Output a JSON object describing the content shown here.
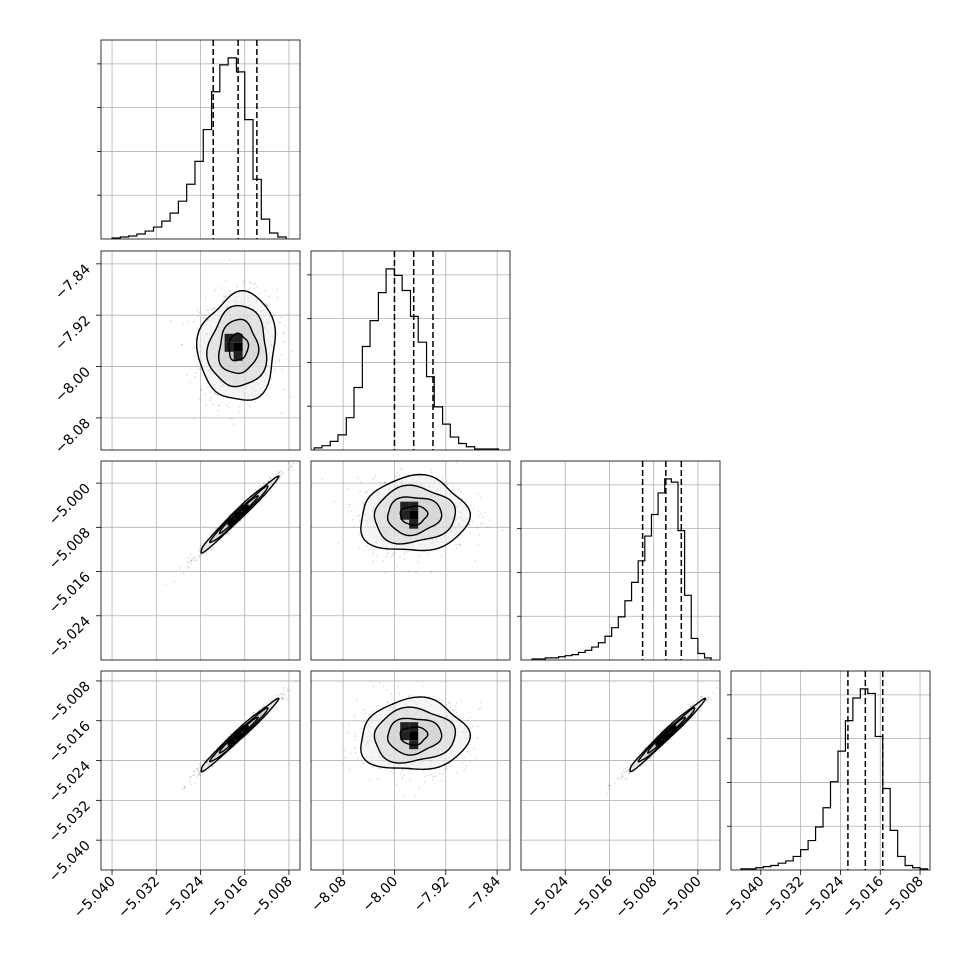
{
  "figure": {
    "kind": "corner plot"
  },
  "params": [
    {
      "range": [
        -5.042,
        -5.006
      ],
      "ticks": [
        -5.04,
        -5.032,
        -5.024,
        -5.016,
        -5.008
      ],
      "tick_labels": [
        "−5.040",
        "−5.032",
        "−5.024",
        "−5.016",
        "−5.008"
      ],
      "quantiles": [
        -5.0217,
        -5.0172,
        -5.0138
      ]
    },
    {
      "range": [
        -8.13,
        -7.82
      ],
      "ticks": [
        -8.08,
        -8.0,
        -7.92,
        -7.84
      ],
      "tick_labels": [
        "−8.08",
        "−8.00",
        "−7.92",
        "−7.84"
      ],
      "quantiles": [
        -8.0,
        -7.97,
        -7.94
      ]
    },
    {
      "range": [
        -5.032,
        -4.996
      ],
      "ticks": [
        -5.024,
        -5.016,
        -5.008,
        -5.0
      ],
      "tick_labels": [
        "−5.024",
        "−5.016",
        "−5.008",
        "−5.000"
      ],
      "quantiles": [
        -5.01,
        -5.0058,
        -5.003
      ]
    },
    {
      "range": [
        -5.046,
        -5.006
      ],
      "ticks": [
        -5.04,
        -5.032,
        -5.024,
        -5.016,
        -5.008
      ],
      "tick_labels": [
        "−5.040",
        "−5.032",
        "−5.024",
        "−5.016",
        "−5.008"
      ],
      "quantiles": [
        -5.0225,
        -5.019,
        -5.0155
      ]
    }
  ],
  "chart_data": {
    "type": "histogram",
    "grid": true,
    "histograms": [
      {
        "param": 0,
        "bin_edges": [
          -5.04,
          -5.0385,
          -5.037,
          -5.0355,
          -5.034,
          -5.0325,
          -5.031,
          -5.0295,
          -5.028,
          -5.0265,
          -5.025,
          -5.0235,
          -5.022,
          -5.0205,
          -5.019,
          -5.0175,
          -5.016,
          -5.0145,
          -5.013,
          -5.0115,
          -5.01,
          -5.0085
        ],
        "counts": [
          1,
          2,
          3,
          5,
          8,
          12,
          18,
          26,
          38,
          55,
          78,
          110,
          148,
          175,
          182,
          168,
          120,
          60,
          20,
          6,
          2
        ]
      },
      {
        "param": 1,
        "bin_edges": [
          -8.125,
          -8.113,
          -8.1,
          -8.088,
          -8.075,
          -8.063,
          -8.05,
          -8.038,
          -8.025,
          -8.013,
          -8.0,
          -7.988,
          -7.975,
          -7.963,
          -7.95,
          -7.938,
          -7.925,
          -7.913,
          -7.9,
          -7.888,
          -7.875,
          -7.863,
          -7.85,
          -7.838
        ],
        "counts": [
          2,
          4,
          8,
          14,
          30,
          58,
          96,
          120,
          146,
          168,
          162,
          148,
          124,
          100,
          68,
          40,
          24,
          12,
          6,
          3,
          1,
          1,
          1
        ]
      },
      {
        "param": 2,
        "bin_edges": [
          -5.03,
          -5.0288,
          -5.0276,
          -5.0264,
          -5.0252,
          -5.024,
          -5.0228,
          -5.0216,
          -5.0204,
          -5.0192,
          -5.018,
          -5.0168,
          -5.0156,
          -5.0144,
          -5.0132,
          -5.012,
          -5.0108,
          -5.0096,
          -5.0084,
          -5.0072,
          -5.006,
          -5.0048,
          -5.0036,
          -5.0024,
          -5.0012,
          -5.0,
          -4.9988,
          -4.9976
        ],
        "counts": [
          1,
          1,
          2,
          2,
          3,
          4,
          5,
          7,
          9,
          12,
          16,
          22,
          30,
          40,
          55,
          72,
          92,
          115,
          135,
          155,
          168,
          165,
          120,
          60,
          20,
          6,
          2
        ]
      },
      {
        "param": 3,
        "bin_edges": [
          -5.044,
          -5.0425,
          -5.041,
          -5.0395,
          -5.038,
          -5.0365,
          -5.035,
          -5.0335,
          -5.032,
          -5.0305,
          -5.029,
          -5.0275,
          -5.026,
          -5.0245,
          -5.023,
          -5.0215,
          -5.02,
          -5.0185,
          -5.017,
          -5.0155,
          -5.014,
          -5.0125,
          -5.011,
          -5.0095,
          -5.008,
          -5.0065
        ],
        "counts": [
          1,
          1,
          2,
          3,
          4,
          6,
          8,
          12,
          18,
          26,
          38,
          55,
          78,
          105,
          132,
          152,
          160,
          156,
          118,
          72,
          35,
          12,
          4,
          2,
          1
        ]
      }
    ],
    "pair_panels": [
      {
        "x_param": 0,
        "y_param": 1,
        "center": [
          -5.0172,
          -7.97
        ],
        "sigma": [
          0.0035,
          0.042
        ],
        "rho": 0.05,
        "core_cells": 5
      },
      {
        "x_param": 0,
        "y_param": 2,
        "center": [
          -5.0172,
          -5.0058
        ],
        "sigma": [
          0.0035,
          0.0034
        ],
        "rho": 0.985,
        "core_cells": 3
      },
      {
        "x_param": 1,
        "y_param": 2,
        "center": [
          -7.97,
          -5.0058
        ],
        "sigma": [
          0.042,
          0.0034
        ],
        "rho": 0.06,
        "core_cells": 5
      },
      {
        "x_param": 0,
        "y_param": 3,
        "center": [
          -5.0172,
          -5.019
        ],
        "sigma": [
          0.0035,
          0.0036
        ],
        "rho": 0.985,
        "core_cells": 3
      },
      {
        "x_param": 1,
        "y_param": 3,
        "center": [
          -7.97,
          -5.019
        ],
        "sigma": [
          0.042,
          0.0036
        ],
        "rho": 0.06,
        "core_cells": 5
      },
      {
        "x_param": 2,
        "y_param": 3,
        "center": [
          -5.0058,
          -5.019
        ],
        "sigma": [
          0.0034,
          0.0036
        ],
        "rho": 0.985,
        "core_cells": 3
      }
    ],
    "contour_levels_sigma": [
      0.5,
      1.0,
      1.5,
      2.0
    ]
  }
}
